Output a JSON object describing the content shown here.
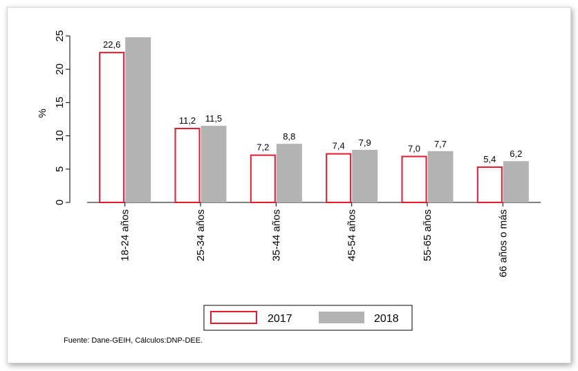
{
  "chart_data": {
    "type": "bar",
    "categories": [
      "18-24 años",
      "25-34 años",
      "35-44 años",
      "45-54 años",
      "55-65 años",
      "66 años o más"
    ],
    "series": [
      {
        "name": "2017",
        "values": [
          22.6,
          11.2,
          7.2,
          7.4,
          7.0,
          5.4
        ],
        "labels": [
          "22,6",
          "11,2",
          "7,2",
          "7,4",
          "7,0",
          "5,4"
        ],
        "color": "#e8192c"
      },
      {
        "name": "2018",
        "values": [
          24.8,
          11.5,
          8.8,
          7.9,
          7.7,
          6.2
        ],
        "labels": [
          "",
          "11,5",
          "8,8",
          "7,9",
          "7,7",
          "6,2"
        ],
        "color": "#b3b3b3"
      }
    ],
    "ylabel": "%",
    "ylim": [
      0,
      25
    ],
    "yticks": [
      0,
      5,
      10,
      15,
      20,
      25
    ],
    "ytick_labels": [
      "0",
      "5",
      "10",
      "15",
      "20",
      "25"
    ],
    "legend_position": "bottom-center",
    "grid": false,
    "source": "Fuente: Dane-GEIH, Cálculos:DNP-DEE."
  }
}
